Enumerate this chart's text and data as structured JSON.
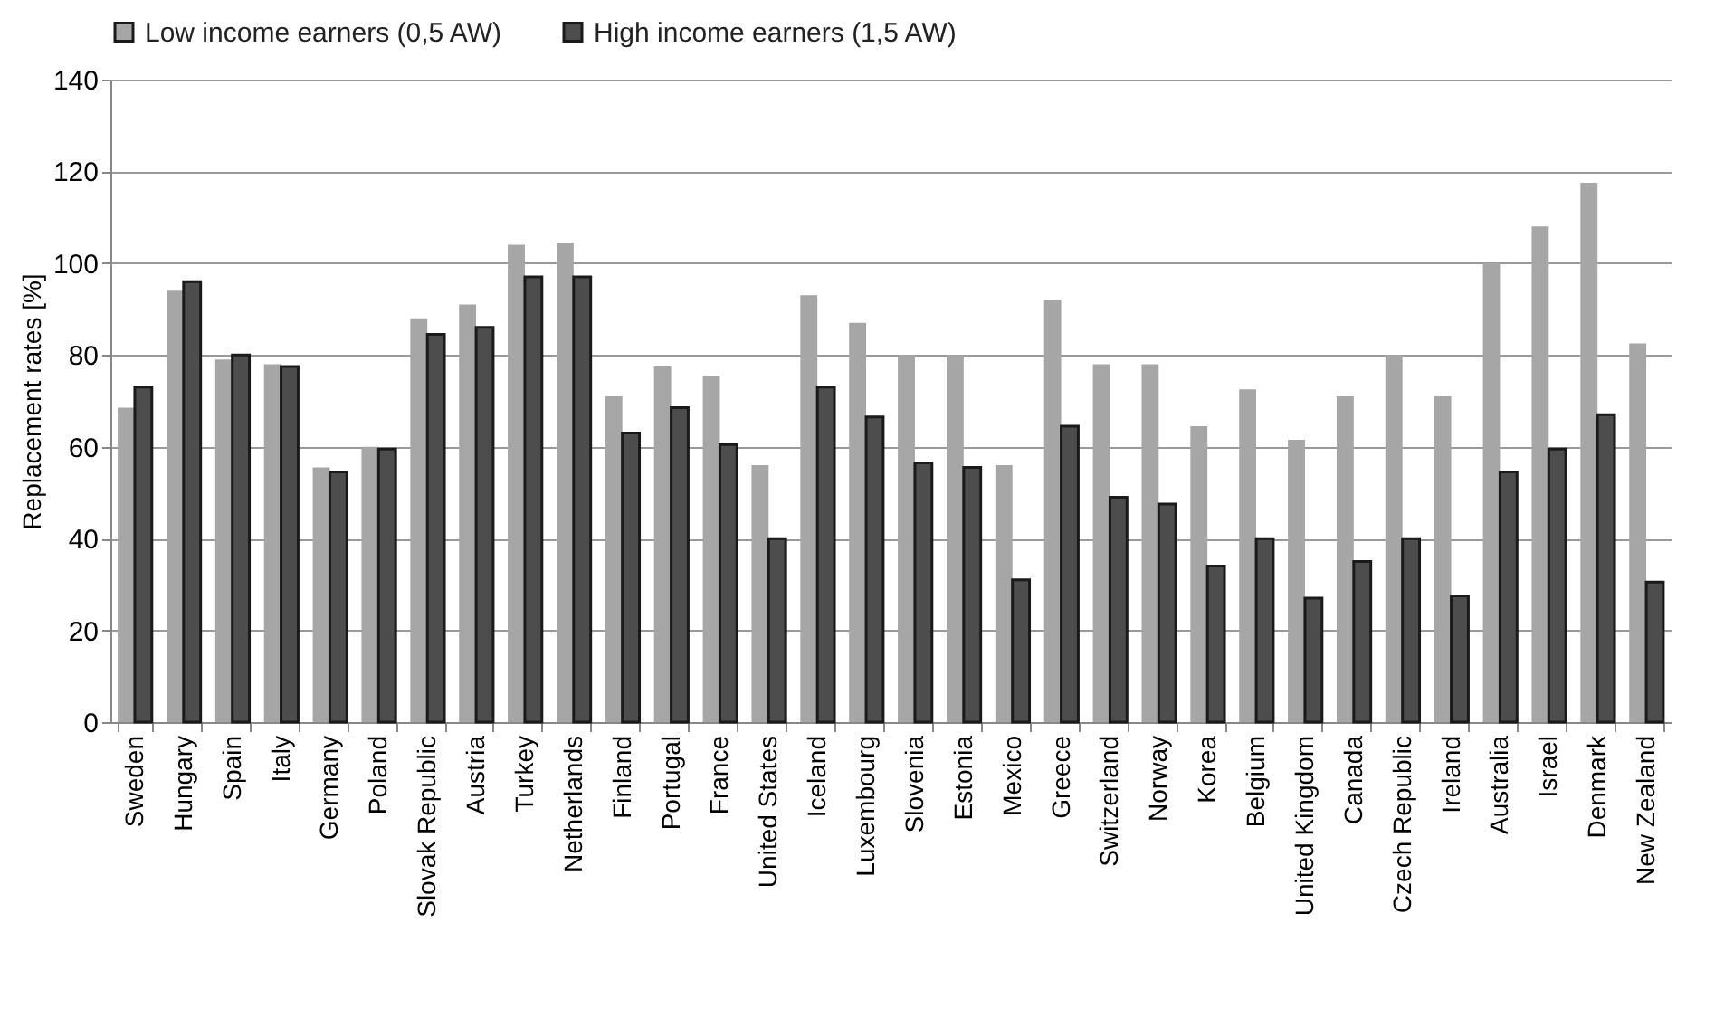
{
  "chart_data": {
    "type": "bar",
    "ylabel": "Replacement rates [%]",
    "categories": [
      "Sweden",
      "Hungary",
      "Spain",
      "Italy",
      "Germany",
      "Poland",
      "Slovak Republic",
      "Austria",
      "Turkey",
      "Netherlands",
      "Finland",
      "Portugal",
      "France",
      "United States",
      "Iceland",
      "Luxembourg",
      "Slovenia",
      "Estonia",
      "Mexico",
      "Greece",
      "Switzerland",
      "Norway",
      "Korea",
      "Belgium",
      "United Kingdom",
      "Canada",
      "Czech Republic",
      "Ireland",
      "Australia",
      "Israel",
      "Denmark",
      "New Zealand"
    ],
    "series": [
      {
        "name": "Low income earners (0,5 AW)",
        "color": "#a6a6a6",
        "values": [
          68.5,
          94,
          79,
          78,
          55.5,
          60,
          88,
          91,
          104,
          104.5,
          71,
          77.5,
          75.5,
          56,
          93,
          87,
          80,
          80,
          56,
          92,
          78,
          78,
          64.5,
          72.5,
          61.5,
          71,
          80,
          71,
          100,
          108,
          117.5,
          82.5
        ]
      },
      {
        "name": "High income earners (1,5 AW)",
        "color": "#4d4d4d",
        "values": [
          73,
          96,
          80,
          77.5,
          54.5,
          59.5,
          84.5,
          86,
          97,
          97,
          63,
          68.5,
          60.5,
          40,
          73,
          66.5,
          56.5,
          55.5,
          31,
          64.5,
          49,
          47.5,
          34,
          40,
          27,
          35,
          40,
          27.5,
          54.5,
          59.5,
          67,
          30.5
        ]
      }
    ],
    "ylim": [
      0,
      140
    ],
    "yticks": [
      0,
      20,
      40,
      60,
      80,
      100,
      120,
      140
    ],
    "grid": "y",
    "legend": "top"
  }
}
